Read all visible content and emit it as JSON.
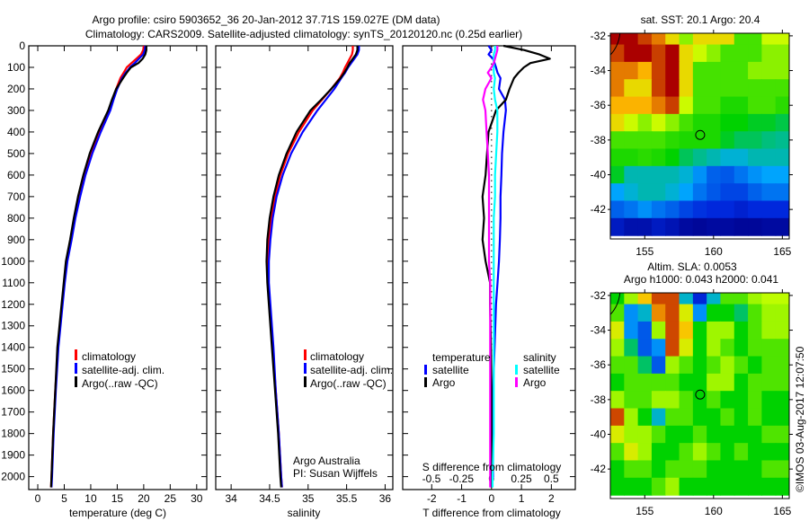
{
  "header": {
    "title_line1": "Argo profile: csiro 5903652_36 20-Jan-2012 37.71S 159.027E (DM data)",
    "title_line2": "Climatology: CARS2009. Satellite-adjusted climatology: synTS_20120120.nc (0.25d earlier)"
  },
  "watermark": "©IMOS 03-Aug-2017 12:07:50",
  "credits": {
    "line1": "Argo Australia",
    "line2": "PI: Susan Wijffels"
  },
  "colors": {
    "climatology": "#ff0000",
    "satellite": "#0000ff",
    "argo": "#000000",
    "s_satellite": "#00ffff",
    "s_argo": "#ff00ff"
  },
  "chart_data": [
    {
      "type": "line",
      "name": "temperature-profile",
      "xlabel": "temperature (deg C)",
      "ylabel": "depth",
      "xlim": [
        -1.7,
        31.9
      ],
      "ylim": [
        2060,
        0
      ],
      "xticks": [
        0,
        5,
        10,
        15,
        20,
        25,
        30
      ],
      "yticks": [
        0,
        100,
        200,
        300,
        400,
        500,
        600,
        700,
        800,
        900,
        1000,
        1100,
        1200,
        1300,
        1400,
        1500,
        1600,
        1700,
        1800,
        1900,
        2000
      ],
      "legend": [
        "climatology",
        "satellite-adj. clim.",
        "Argo(..raw -QC)"
      ],
      "depth": [
        0,
        20,
        40,
        60,
        80,
        100,
        125,
        150,
        200,
        250,
        300,
        400,
        500,
        600,
        700,
        800,
        900,
        1000,
        1100,
        1200,
        1400,
        1600,
        1800,
        2000,
        2050
      ],
      "series": [
        {
          "name": "climatology",
          "color": "#ff0000",
          "values": [
            20.0,
            19.9,
            19.5,
            18.6,
            17.7,
            16.8,
            16.2,
            15.6,
            14.8,
            14.1,
            13.4,
            11.6,
            10.0,
            8.8,
            7.8,
            7.0,
            6.3,
            5.5,
            5.0,
            4.6,
            3.8,
            3.3,
            2.9,
            2.6,
            2.5
          ]
        },
        {
          "name": "satellite-adj. clim.",
          "color": "#0000ff",
          "values": [
            20.3,
            20.2,
            19.9,
            19.1,
            18.3,
            17.4,
            16.6,
            15.9,
            15.0,
            14.3,
            13.7,
            11.9,
            10.3,
            9.0,
            8.0,
            7.1,
            6.4,
            5.6,
            5.1,
            4.7,
            3.9,
            3.4,
            3.0,
            2.7,
            2.6
          ]
        },
        {
          "name": "Argo(..raw -QC)",
          "color": "#000000",
          "values": [
            20.5,
            20.5,
            20.3,
            19.8,
            19.0,
            17.6,
            16.8,
            16.1,
            14.8,
            14.0,
            13.3,
            11.4,
            9.8,
            8.6,
            7.6,
            6.8,
            6.1,
            5.3,
            4.9,
            4.5,
            3.7,
            3.3,
            2.9,
            2.6,
            2.5
          ]
        }
      ]
    },
    {
      "type": "line",
      "name": "salinity-profile",
      "xlabel": "salinity",
      "xlim": [
        33.8,
        36.1
      ],
      "ylim": [
        2060,
        0
      ],
      "xticks": [
        34,
        34.5,
        35,
        35.5,
        36
      ],
      "legend": [
        "climatology",
        "satellite-adj. clim.",
        "Argo(..raw -QC)"
      ],
      "depth": [
        0,
        20,
        40,
        60,
        80,
        100,
        125,
        150,
        200,
        250,
        300,
        400,
        500,
        600,
        700,
        800,
        900,
        1000,
        1100,
        1200,
        1400,
        1600,
        1800,
        2000,
        2050
      ],
      "series": [
        {
          "name": "climatology",
          "color": "#ff0000",
          "values": [
            35.58,
            35.58,
            35.57,
            35.54,
            35.51,
            35.48,
            35.45,
            35.41,
            35.3,
            35.18,
            35.06,
            34.88,
            34.74,
            34.64,
            34.57,
            34.52,
            34.49,
            34.48,
            34.48,
            34.5,
            34.54,
            34.58,
            34.62,
            34.65,
            34.66
          ]
        },
        {
          "name": "satellite-adj. clim.",
          "color": "#0000ff",
          "values": [
            35.66,
            35.66,
            35.64,
            35.6,
            35.56,
            35.52,
            35.48,
            35.43,
            35.34,
            35.23,
            35.12,
            34.93,
            34.78,
            34.67,
            34.59,
            34.54,
            34.51,
            34.49,
            34.49,
            34.51,
            34.55,
            34.58,
            34.62,
            34.65,
            34.66
          ]
        },
        {
          "name": "Argo(..raw -QC)",
          "color": "#000000",
          "values": [
            35.64,
            35.64,
            35.62,
            35.58,
            35.54,
            35.51,
            35.47,
            35.42,
            35.3,
            35.17,
            35.03,
            34.85,
            34.72,
            34.62,
            34.55,
            34.5,
            34.47,
            34.46,
            34.47,
            34.49,
            34.53,
            34.57,
            34.61,
            34.64,
            34.65
          ]
        }
      ]
    },
    {
      "type": "line",
      "name": "difference-profile",
      "xlabel": "T difference from climatology",
      "x2label": "S difference from climatology",
      "xlim": [
        -2.97,
        2.8
      ],
      "x2lim": [
        -0.74,
        0.7
      ],
      "ylim": [
        2060,
        0
      ],
      "xticks": [
        -2,
        -1,
        0,
        1,
        2
      ],
      "x2ticks": [
        -0.5,
        -0.25,
        0,
        0.25,
        0.5
      ],
      "legend": {
        "temperature_heading": "temperature",
        "salinity_heading": "salinity",
        "satellite": "satellite",
        "argo": "Argo"
      },
      "depth": [
        0,
        20,
        40,
        60,
        80,
        100,
        125,
        150,
        200,
        250,
        300,
        400,
        500,
        600,
        700,
        800,
        900,
        1000,
        1100,
        1200,
        1400,
        1600,
        1800,
        2000,
        2050
      ],
      "series": [
        {
          "name": "T satellite",
          "axis": "T",
          "color": "#0000ff",
          "values": [
            -0.1,
            0.0,
            -0.1,
            0.05,
            0.1,
            0.15,
            0.2,
            0.3,
            0.25,
            0.45,
            0.48,
            0.4,
            0.35,
            0.33,
            0.3,
            0.3,
            0.28,
            0.25,
            0.2,
            0.15,
            0.1,
            0.05,
            0.05,
            0.05,
            0
          ]
        },
        {
          "name": "T Argo",
          "axis": "T",
          "color": "#000000",
          "values": [
            0.4,
            1.1,
            1.6,
            1.95,
            1.3,
            1.08,
            0.9,
            0.75,
            0.6,
            0.48,
            0.15,
            -0.1,
            -0.15,
            -0.2,
            -0.3,
            -0.25,
            -0.3,
            -0.2,
            -0.05,
            -0.05,
            -0.02,
            0,
            0,
            0,
            0
          ]
        },
        {
          "name": "S satellite",
          "axis": "S",
          "color": "#00ffff",
          "values": [
            0.03,
            0.03,
            0.02,
            0.02,
            0.02,
            0.02,
            0.02,
            0.03,
            0.02,
            0.03,
            0.05,
            0.05,
            0.04,
            0.03,
            0.03,
            0.02,
            0.02,
            0.02,
            0.02,
            0.02,
            0.02,
            0.02,
            0.02,
            0.01,
            0.01
          ]
        },
        {
          "name": "S Argo",
          "axis": "S",
          "color": "#ff00ff",
          "values": [
            0.05,
            0.05,
            0.04,
            0.03,
            0.02,
            0,
            -0.03,
            0,
            -0.05,
            -0.07,
            -0.05,
            -0.04,
            -0.03,
            -0.02,
            -0.02,
            -0.02,
            -0.02,
            -0.02,
            -0.01,
            -0.01,
            -0.01,
            -0.01,
            -0.01,
            -0.01,
            -0.01
          ]
        }
      ]
    },
    {
      "type": "heatmap",
      "name": "sst-map",
      "title": "sat. SST: 20.1 Argo: 20.4",
      "xlim": [
        152.5,
        165.5
      ],
      "ylim": [
        -43.7,
        -31.85
      ],
      "xticks": [
        155,
        160,
        165
      ],
      "yticks": [
        -32,
        -34,
        -36,
        -38,
        -40,
        -42
      ],
      "lons": [
        153,
        154,
        155,
        156,
        157,
        158,
        159,
        160,
        161,
        162,
        163,
        164,
        165
      ],
      "lats": [
        -32,
        -33,
        -34,
        -35,
        -36,
        -37,
        -38,
        -39,
        -40,
        -41,
        -42,
        -43
      ],
      "value_range": [
        15,
        23
      ],
      "values": [
        [
          23,
          23,
          22.5,
          22,
          21,
          20,
          21,
          21,
          21,
          19.5,
          19.5,
          20.5,
          20.5
        ],
        [
          22.5,
          23,
          23,
          22.5,
          23,
          21,
          20.5,
          20,
          19.5,
          19.5,
          19.5,
          20,
          20
        ],
        [
          22,
          22,
          21.5,
          22.5,
          23,
          21,
          19.5,
          19.5,
          19.5,
          19.5,
          20,
          20,
          20
        ],
        [
          22,
          21,
          21,
          22.5,
          23,
          21,
          19.5,
          19.5,
          19.5,
          19.5,
          19.5,
          19.5,
          19.5
        ],
        [
          21.5,
          21.5,
          21.5,
          22,
          22.5,
          20.5,
          19.5,
          19.5,
          19.2,
          19.2,
          19.5,
          19.5,
          19.3
        ],
        [
          21,
          20.5,
          20,
          20.5,
          20,
          19.5,
          19.2,
          19.2,
          19,
          19,
          18.8,
          18.8,
          18.6
        ],
        [
          19.5,
          19.5,
          19.5,
          19.5,
          19.3,
          19.2,
          19.2,
          19.2,
          18.8,
          18.5,
          18.5,
          18.3,
          18.2
        ],
        [
          19.2,
          19.2,
          19.3,
          19.2,
          19,
          18.5,
          18.2,
          18,
          17.8,
          17.8,
          18,
          18,
          18
        ],
        [
          18.8,
          18,
          18,
          18,
          18,
          17.8,
          17.3,
          16.8,
          16.7,
          17,
          17.3,
          17.5,
          17.5
        ],
        [
          17.5,
          17.8,
          18,
          18,
          17.8,
          17.5,
          17,
          16.7,
          16.5,
          16.5,
          16.8,
          17,
          17
        ],
        [
          16.8,
          17,
          17.3,
          17,
          16.8,
          16.5,
          16.3,
          16.2,
          16.2,
          16,
          16.2,
          16.2,
          16.2
        ],
        [
          15.8,
          15.5,
          15.5,
          15.8,
          15.6,
          15.3,
          15.2,
          15.3,
          15.3,
          15.2,
          15.2,
          15.3,
          15.3
        ]
      ],
      "marker": {
        "lon": 159.027,
        "lat": -37.71
      }
    },
    {
      "type": "heatmap",
      "name": "sla-map",
      "title": "Altim. SLA: 0.0053",
      "subtitle": "Argo h1000: 0.043 h2000: 0.041",
      "xlim": [
        152.5,
        165.5
      ],
      "ylim": [
        -43.7,
        -31.85
      ],
      "xticks": [
        155,
        160,
        165
      ],
      "yticks": [
        -32,
        -34,
        -36,
        -38,
        -40,
        -42
      ],
      "lons": [
        153,
        154,
        155,
        156,
        157,
        158,
        159,
        160,
        161,
        162,
        163,
        164,
        165
      ],
      "lats": [
        -32,
        -33,
        -34,
        -35,
        -36,
        -37,
        -38,
        -39,
        -40,
        -41,
        -42,
        -43
      ],
      "value_range": [
        -0.35,
        0.35
      ],
      "values": [
        [
          0,
          0.1,
          0.2,
          0.3,
          0.3,
          -0.1,
          -0.25,
          -0.1,
          0.05,
          0.05,
          0.1,
          0.12,
          0.12
        ],
        [
          0.05,
          -0.15,
          -0.1,
          0.25,
          0.3,
          0.15,
          -0.15,
          0,
          0,
          -0.05,
          0.05,
          0.1,
          0.1
        ],
        [
          0.15,
          -0.15,
          -0.2,
          0.1,
          0.3,
          0.2,
          0,
          0.1,
          0.1,
          0,
          0.05,
          0.1,
          0.1
        ],
        [
          0.1,
          -0.05,
          -0.2,
          -0.15,
          0.3,
          0.15,
          0,
          0.1,
          0.05,
          0,
          0.05,
          0.05,
          0.05
        ],
        [
          0.05,
          0.05,
          -0.05,
          -0.2,
          0.1,
          0.05,
          0,
          0.05,
          0.1,
          0.05,
          0,
          0.05,
          0.05
        ],
        [
          0,
          0.05,
          0.05,
          0.05,
          0.05,
          0,
          0,
          0.1,
          0.1,
          0,
          0.05,
          0.05,
          0.05
        ],
        [
          0.1,
          0.05,
          0.05,
          0.1,
          0.1,
          0.05,
          0,
          0.05,
          0,
          0,
          0.05,
          0,
          0
        ],
        [
          0.3,
          0.1,
          0,
          -0.1,
          0.05,
          0.05,
          0,
          0,
          0.05,
          0,
          0.05,
          0,
          0
        ],
        [
          0.15,
          0.1,
          0.1,
          0.05,
          0,
          0,
          0.05,
          0,
          0,
          0,
          0,
          0.05,
          0.05
        ],
        [
          0.05,
          0.15,
          0.1,
          0,
          0,
          0.05,
          0.1,
          0.05,
          0,
          0.05,
          0,
          0,
          0
        ],
        [
          0,
          0.05,
          0.05,
          0,
          0.05,
          0.05,
          0.05,
          0,
          0,
          0,
          0,
          0.05,
          0.05
        ],
        [
          0,
          0,
          0,
          0.05,
          0.1,
          0,
          0,
          0,
          0,
          0,
          0,
          0,
          0
        ]
      ],
      "marker": {
        "lon": 159.027,
        "lat": -37.71
      }
    }
  ]
}
